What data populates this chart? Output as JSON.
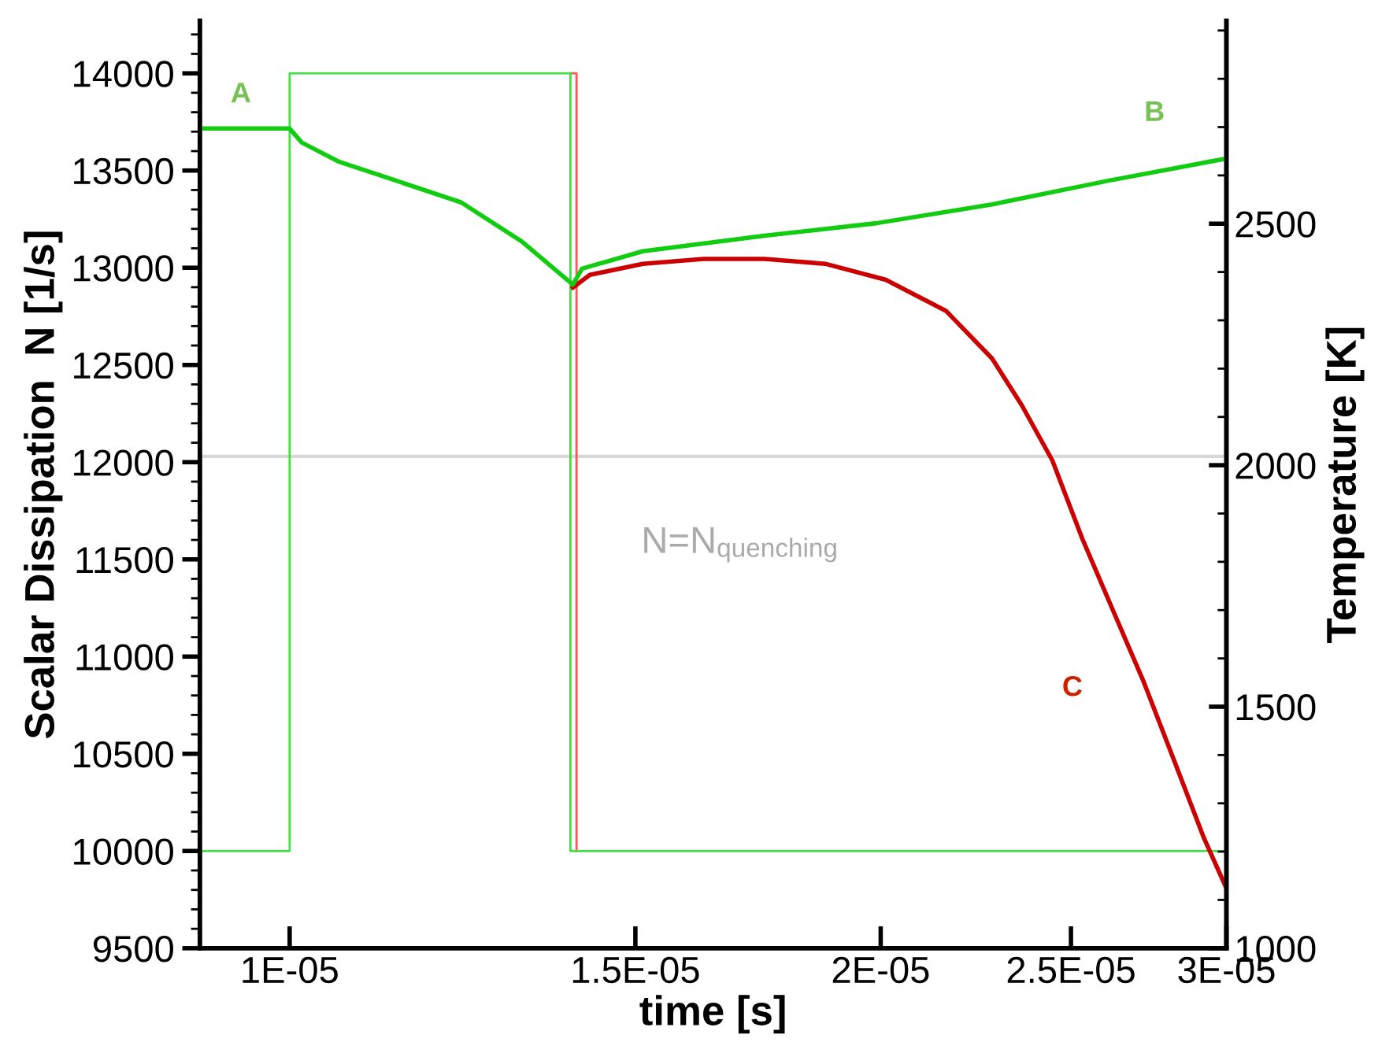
{
  "chart_data": {
    "type": "line",
    "xlabel": "time [s]",
    "ylabel": "Scalar Dissipation  N [1/s]",
    "y2label": "Temperature [K]",
    "log": "x",
    "xlim": [
      9e-06,
      3e-05
    ],
    "xticks": [
      {
        "value": 1e-05,
        "label": "1E-05"
      },
      {
        "value": 1.5e-05,
        "label": "1.5E-05"
      },
      {
        "value": 2e-05,
        "label": "2E-05"
      },
      {
        "value": 2.5e-05,
        "label": "2.5E-05"
      },
      {
        "value": 3e-05,
        "label": "3E-05"
      }
    ],
    "ylim": [
      9500,
      14270
    ],
    "yticks": [
      9500,
      10000,
      10500,
      11000,
      11500,
      12000,
      12500,
      13000,
      13500,
      14000
    ],
    "y2lim": [
      1000,
      2920
    ],
    "y2ticks": [
      1000,
      1500,
      2000,
      2500
    ],
    "grid": false,
    "marker": "none",
    "line_style": "solid",
    "series": [
      {
        "axis": "y",
        "color": "#ff5555",
        "x": [
          1.39e-05,
          1.4e-05,
          1.4e-05
        ],
        "values": [
          14000,
          14000,
          10000
        ]
      },
      {
        "axis": "y",
        "color": "#44dd44",
        "x": [
          9e-06,
          1e-05,
          1e-05,
          1.39e-05,
          1.39e-05,
          3e-05
        ],
        "values": [
          10000,
          10000,
          14000,
          14000,
          10000,
          10000
        ]
      },
      {
        "axis": "y2",
        "color": "#cc0000",
        "x": [
          1.394e-05,
          1.422e-05,
          1.513e-05,
          1.625e-05,
          1.745e-05,
          1.874e-05,
          2.012e-05,
          2.16e-05,
          2.279e-05,
          2.36e-05,
          2.446e-05,
          2.534e-05,
          2.626e-05,
          2.721e-05,
          2.82e-05,
          2.922e-05,
          3e-05
        ],
        "values": [
          2368,
          2394,
          2417,
          2427,
          2427,
          2417,
          2384,
          2319,
          2221,
          2124,
          2010,
          1847,
          1700,
          1554,
          1391,
          1228,
          1124
        ]
      },
      {
        "axis": "y2",
        "color": "#11cc11",
        "x": [
          9e-06,
          1e-05,
          1.0143e-05,
          1.06e-05,
          1.139e-05,
          1.223e-05,
          1.313e-05,
          1.394e-05,
          1.409e-05,
          1.513e-05,
          1.745e-05,
          1.99e-05,
          2.279e-05,
          2.612e-05,
          3e-05
        ],
        "values": [
          2697,
          2697,
          2668,
          2628,
          2586,
          2544,
          2463,
          2374,
          2407,
          2443,
          2475,
          2501,
          2540,
          2589,
          2635
        ]
      }
    ],
    "ref_lines": [
      {
        "axis": "y",
        "value": 12030,
        "label": "N=N$_{quenching}$",
        "color": "#d8d8d8"
      }
    ],
    "annotations": [
      "A",
      "B",
      "C"
    ]
  }
}
